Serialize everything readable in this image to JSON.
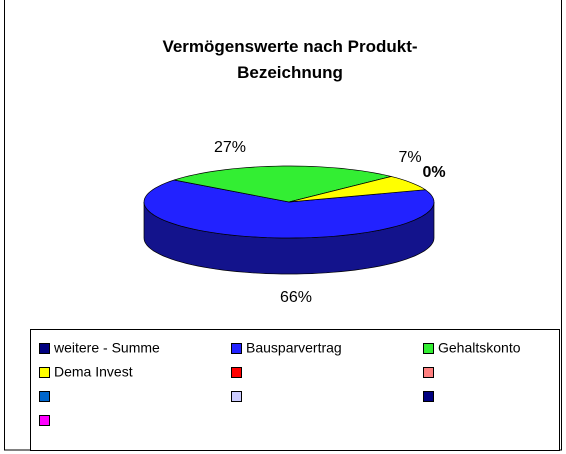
{
  "chart_data": {
    "type": "pie",
    "title": "Vermögenswerte nach Produkt-Bezeichnung",
    "categories": [
      "weitere - Summe",
      "Bausparvertrag",
      "Gehaltskonto",
      "Dema Invest",
      null,
      null,
      null,
      null,
      null,
      null
    ],
    "values": [
      0,
      66,
      27,
      7,
      null,
      null,
      null,
      null,
      null,
      null
    ],
    "value_labels": [
      "0%",
      "66%",
      "27%",
      "7%",
      null,
      null,
      null,
      null,
      null,
      null
    ],
    "colors": [
      "#000080",
      "#2222ff",
      "#33ee33",
      "#ffff00",
      "#ff0000",
      "#ff8080",
      "#0066cc",
      "#ccccff",
      "#000080",
      "#ff00ff"
    ]
  }
}
